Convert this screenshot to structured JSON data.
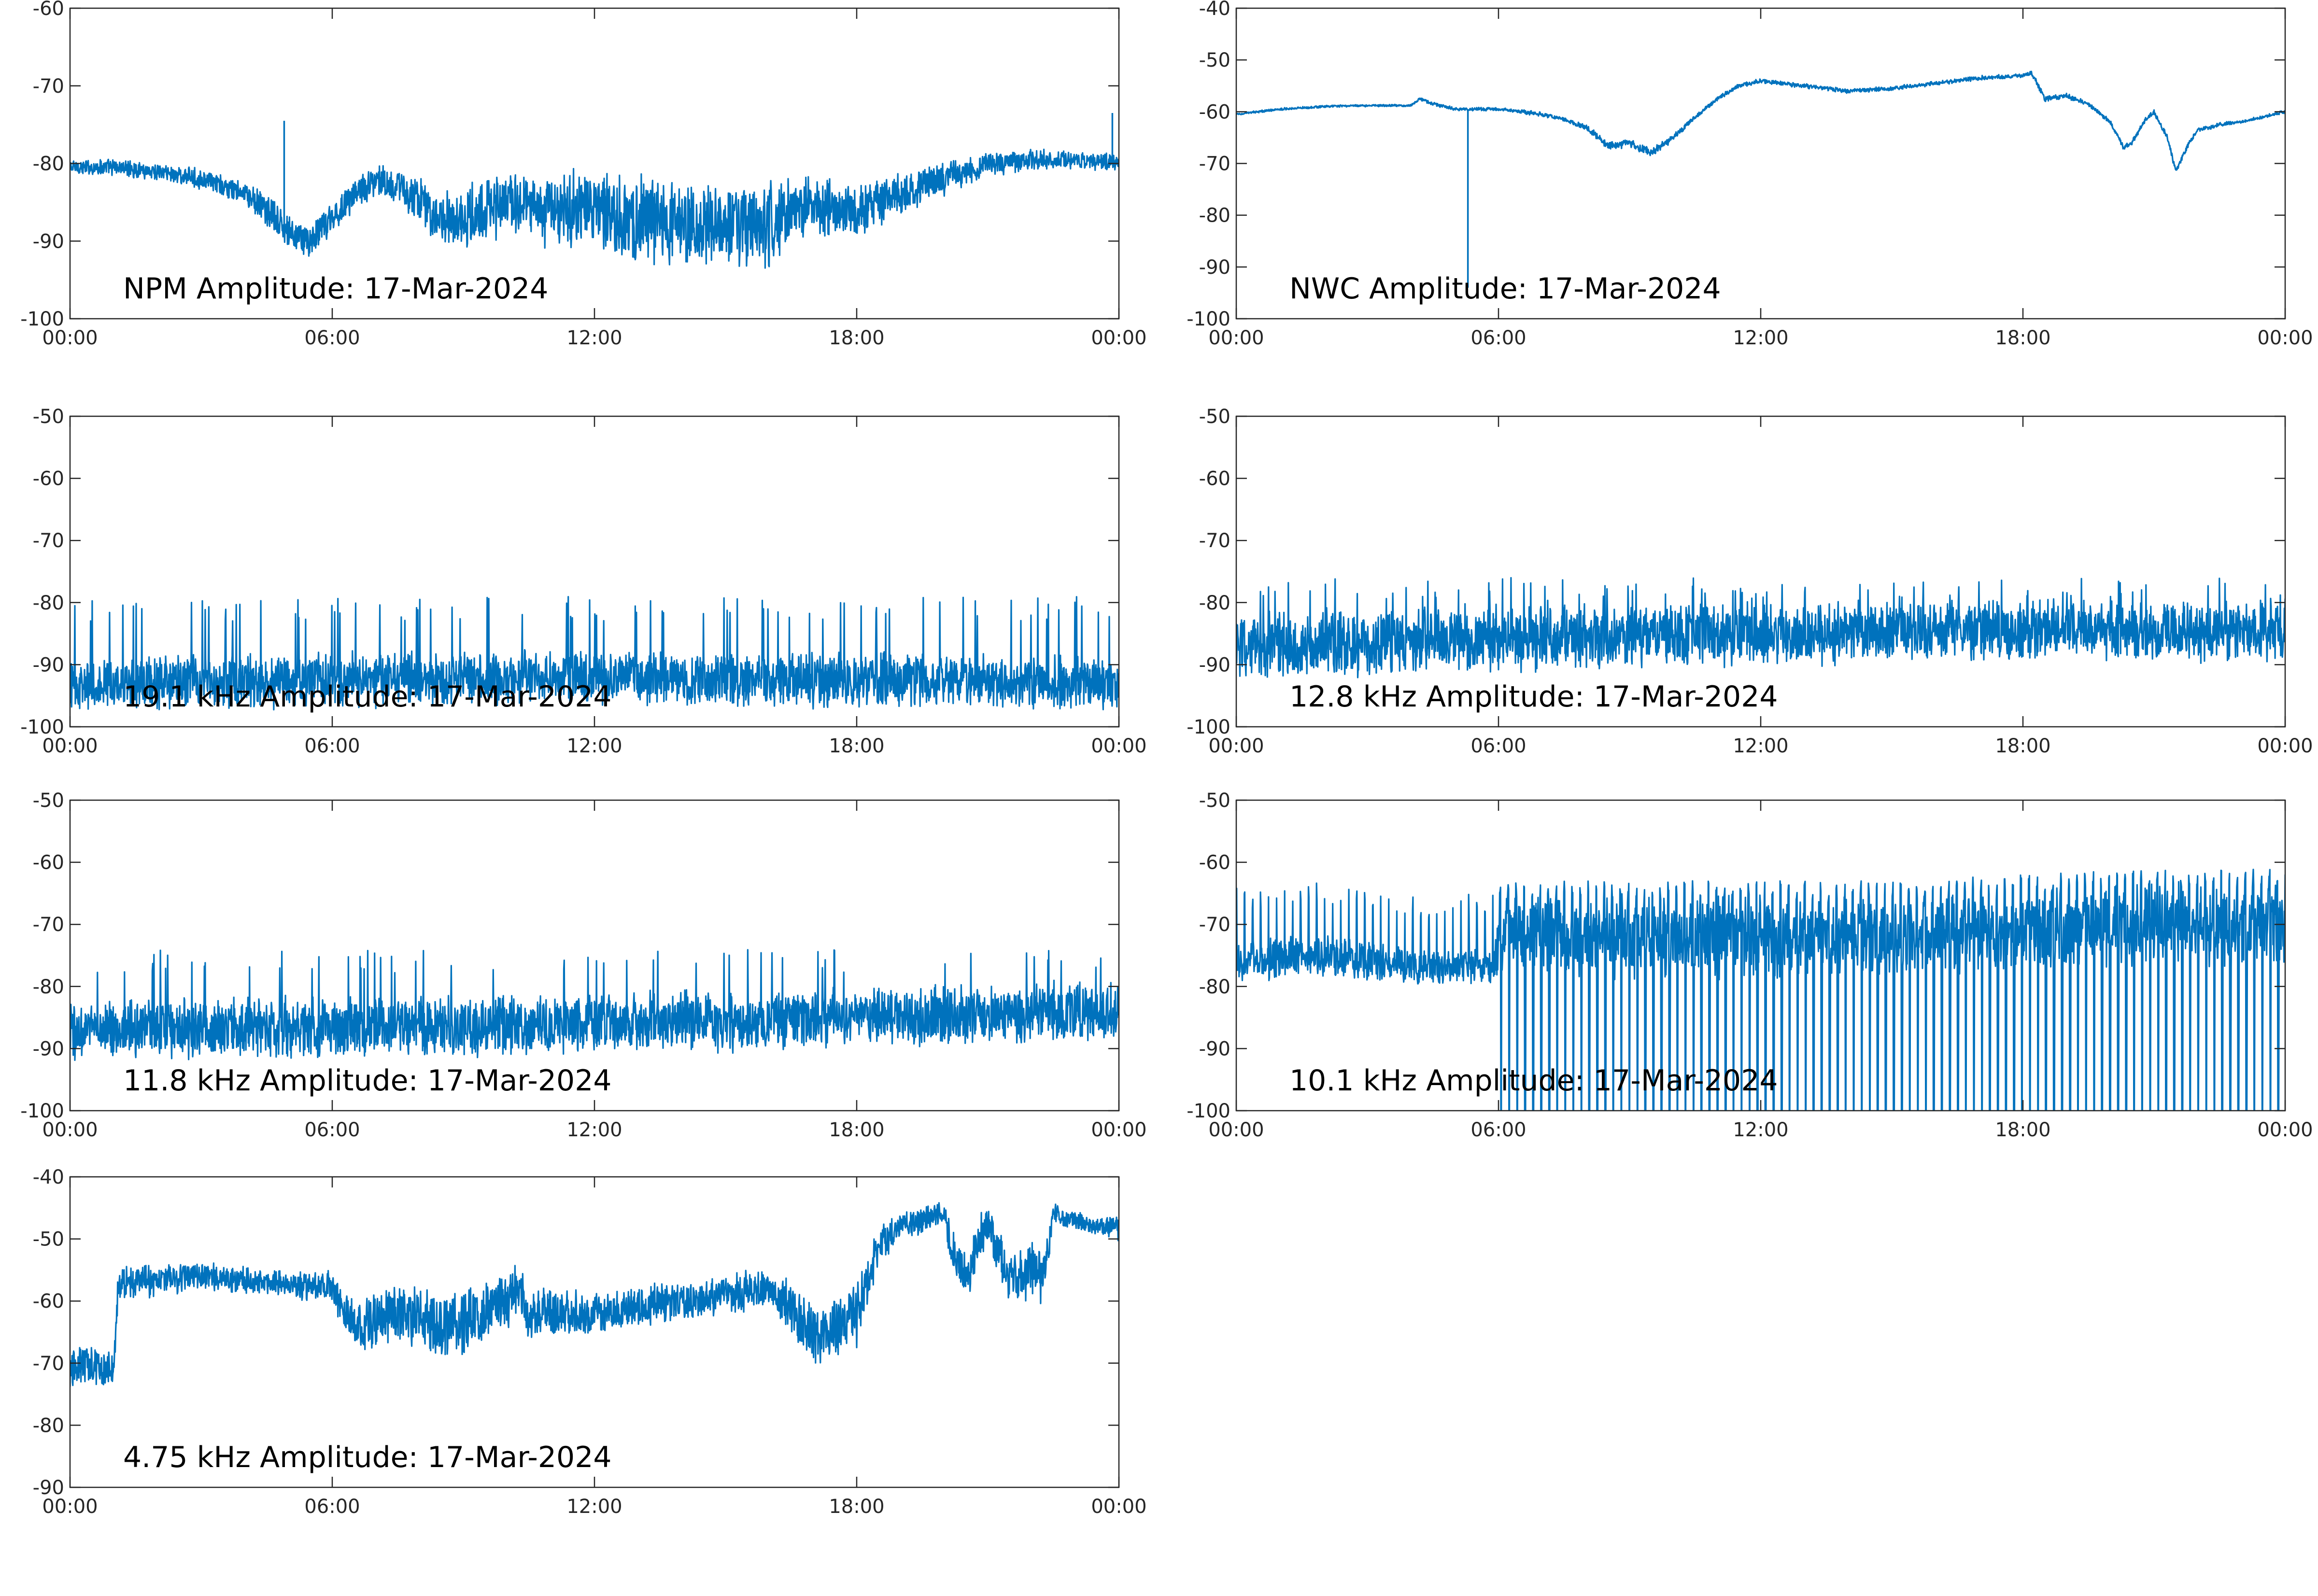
{
  "figure": {
    "background": "#ffffff",
    "line_color": "#0072bd",
    "axis_color": "#262626"
  },
  "chart_data": [
    {
      "type": "line",
      "title": "NPM Amplitude: 17-Mar-2024",
      "xlabel": "",
      "ylabel": "",
      "xticks": [
        "00:00",
        "06:00",
        "12:00",
        "18:00",
        "00:00"
      ],
      "yticks": [
        "-60",
        "-70",
        "-80",
        "-90",
        "-100"
      ],
      "ylim": [
        -100,
        -60
      ],
      "xlim_hours": [
        0,
        24
      ],
      "grid": false,
      "series": [
        {
          "x_hours": [
            0,
            1,
            2,
            3,
            4,
            4.5,
            5,
            5.5,
            6,
            6.5,
            7,
            7.5,
            8,
            8.5,
            9,
            9.5,
            10,
            11,
            12,
            13,
            14,
            15,
            16,
            16.5,
            17,
            17.5,
            18,
            19,
            20,
            21,
            22,
            23,
            24
          ],
          "center": [
            -80.5,
            -80.5,
            -81,
            -82,
            -84,
            -86,
            -89,
            -90,
            -87,
            -84,
            -82,
            -83,
            -85,
            -87,
            -87,
            -86,
            -85,
            -86,
            -86,
            -87,
            -88,
            -88,
            -88,
            -86,
            -85,
            -86,
            -86,
            -84,
            -82,
            -80,
            -79.5,
            -79.5,
            -80
          ],
          "noise": [
            1,
            1,
            1,
            1.2,
            1.5,
            2,
            2,
            2,
            2,
            2,
            1.8,
            2.2,
            3,
            3,
            3.5,
            4,
            4,
            4.5,
            4.5,
            5,
            5,
            5,
            5,
            4,
            3.5,
            3.5,
            3,
            2.5,
            2,
            1.5,
            1.2,
            1,
            1
          ],
          "spikes": [
            {
              "x_hours": 4.9,
              "value": -74.5
            },
            {
              "x_hours": 23.85,
              "value": -73.5
            }
          ]
        }
      ]
    },
    {
      "type": "line",
      "title": "NWC Amplitude: 17-Mar-2024",
      "xlabel": "",
      "ylabel": "",
      "xticks": [
        "00:00",
        "06:00",
        "12:00",
        "18:00",
        "00:00"
      ],
      "yticks": [
        "-40",
        "-50",
        "-60",
        "-70",
        "-80",
        "-90",
        "-100"
      ],
      "ylim": [
        -100,
        -40
      ],
      "xlim_hours": [
        0,
        24
      ],
      "grid": false,
      "series": [
        {
          "x_hours": [
            0,
            1,
            2,
            3,
            4,
            4.2,
            4.5,
            5,
            6,
            7,
            7.5,
            8,
            8.5,
            9,
            9.5,
            10,
            10.5,
            11,
            11.5,
            12,
            13,
            14,
            15,
            15.5,
            16,
            17,
            18,
            18.2,
            18.5,
            19,
            19.5,
            20,
            20.3,
            20.5,
            20.8,
            21,
            21.3,
            21.5,
            21.8,
            22,
            22.5,
            23,
            24
          ],
          "center": [
            -60.5,
            -59.5,
            -59,
            -58.8,
            -58.8,
            -57.5,
            -58.5,
            -59.5,
            -59.5,
            -60.5,
            -61.5,
            -63,
            -66.5,
            -66,
            -68,
            -65,
            -61,
            -57.5,
            -55,
            -54,
            -55,
            -56,
            -55.5,
            -55,
            -54.5,
            -53.5,
            -53,
            -52.5,
            -57.5,
            -57,
            -58.5,
            -62,
            -67,
            -66,
            -61.5,
            -60,
            -65,
            -71.5,
            -66,
            -63.5,
            -62.5,
            -62,
            -60
          ],
          "noise": [
            0.2,
            0.2,
            0.2,
            0.2,
            0.2,
            0.3,
            0.3,
            0.3,
            0.3,
            0.4,
            0.4,
            0.5,
            0.8,
            0.8,
            0.8,
            0.6,
            0.5,
            0.4,
            0.4,
            0.4,
            0.4,
            0.4,
            0.4,
            0.4,
            0.4,
            0.4,
            0.4,
            0.4,
            0.5,
            0.5,
            0.4,
            0.4,
            0.5,
            0.5,
            0.4,
            0.4,
            0.5,
            0.5,
            0.4,
            0.4,
            0.4,
            0.3,
            0.3
          ],
          "spikes": [
            {
              "x_hours": 5.3,
              "value": -94
            }
          ]
        }
      ]
    },
    {
      "type": "line",
      "title": "19.1 kHz Amplitude: 17-Mar-2024",
      "xlabel": "",
      "ylabel": "",
      "xticks": [
        "00:00",
        "06:00",
        "12:00",
        "18:00",
        "00:00"
      ],
      "yticks": [
        "-50",
        "-60",
        "-70",
        "-80",
        "-90",
        "-100"
      ],
      "ylim": [
        -100,
        -50
      ],
      "xlim_hours": [
        0,
        24
      ],
      "grid": false,
      "series": [
        {
          "x_hours": [
            0,
            6,
            12,
            18,
            24
          ],
          "center": [
            -93,
            -92.5,
            -92,
            -92.5,
            -93
          ],
          "noise": [
            4,
            4,
            4,
            4,
            4
          ],
          "spike_height": -81
        }
      ]
    },
    {
      "type": "line",
      "title": "12.8 kHz Amplitude: 17-Mar-2024",
      "xlabel": "",
      "ylabel": "",
      "xticks": [
        "00:00",
        "06:00",
        "12:00",
        "18:00",
        "00:00"
      ],
      "yticks": [
        "-50",
        "-60",
        "-70",
        "-80",
        "-90",
        "-100"
      ],
      "ylim": [
        -100,
        -50
      ],
      "xlim_hours": [
        0,
        24
      ],
      "grid": false,
      "series": [
        {
          "x_hours": [
            0,
            6,
            12,
            18,
            24
          ],
          "center": [
            -87,
            -86,
            -85,
            -84.5,
            -84.5
          ],
          "noise": [
            5,
            5,
            4.5,
            4.5,
            4.5
          ],
          "spike_height": -78
        }
      ]
    },
    {
      "type": "line",
      "title": "11.8 kHz Amplitude: 17-Mar-2024",
      "xlabel": "",
      "ylabel": "",
      "xticks": [
        "00:00",
        "06:00",
        "12:00",
        "18:00",
        "00:00"
      ],
      "yticks": [
        "-50",
        "-60",
        "-70",
        "-80",
        "-90",
        "-100"
      ],
      "ylim": [
        -100,
        -50
      ],
      "xlim_hours": [
        0,
        24
      ],
      "grid": false,
      "series": [
        {
          "x_hours": [
            0,
            6,
            12,
            18,
            24
          ],
          "center": [
            -87,
            -86.5,
            -86,
            -85,
            -84
          ],
          "noise": [
            4.5,
            4.5,
            4.5,
            4.5,
            4.5
          ],
          "spike_height": -76
        }
      ]
    },
    {
      "type": "line",
      "title": "10.1 kHz Amplitude: 17-Mar-2024",
      "xlabel": "",
      "ylabel": "",
      "xticks": [
        "00:00",
        "06:00",
        "12:00",
        "18:00",
        "00:00"
      ],
      "yticks": [
        "-50",
        "-60",
        "-70",
        "-80",
        "-90",
        "-100"
      ],
      "ylim": [
        -100,
        -50
      ],
      "xlim_hours": [
        0,
        24
      ],
      "grid": false,
      "series": [
        {
          "x_hours": [
            0,
            1.5,
            3,
            4.5,
            5.9,
            6,
            9,
            12,
            15,
            18,
            21,
            24
          ],
          "center": [
            -76,
            -75,
            -76,
            -77,
            -77,
            -72,
            -72,
            -72,
            -72,
            -71,
            -70,
            -70
          ],
          "noise": [
            3,
            3,
            3,
            2.5,
            2.5,
            6,
            6,
            6,
            6,
            6,
            6,
            6
          ],
          "dropouts_after_hours": 6
        }
      ]
    },
    {
      "type": "line",
      "title": "4.75 kHz Amplitude: 17-Mar-2024",
      "xlabel": "",
      "ylabel": "",
      "xticks": [
        "00:00",
        "06:00",
        "12:00",
        "18:00",
        "00:00"
      ],
      "yticks": [
        "-40",
        "-50",
        "-60",
        "-70",
        "-80",
        "-90"
      ],
      "ylim": [
        -90,
        -40
      ],
      "xlim_hours": [
        0,
        24
      ],
      "grid": false,
      "series": [
        {
          "x_hours": [
            0,
            0.5,
            1,
            1.1,
            1.5,
            3,
            4.5,
            6,
            6.5,
            7.5,
            8.5,
            9.5,
            10.3,
            10.5,
            11,
            12,
            13,
            14,
            15,
            16,
            16.5,
            17,
            17.5,
            18,
            18.5,
            19,
            19.5,
            20,
            20.3,
            20.5,
            21,
            21.5,
            22,
            22.3,
            22.5,
            23,
            23.5,
            24
          ],
          "center": [
            -71,
            -70,
            -71,
            -57,
            -57,
            -56,
            -57,
            -58,
            -64,
            -62,
            -64,
            -62,
            -58,
            -63,
            -62,
            -62,
            -61,
            -60,
            -59,
            -58,
            -61,
            -66,
            -64,
            -62,
            -51,
            -48,
            -47,
            -46,
            -55,
            -56,
            -47,
            -57,
            -55,
            -56,
            -46,
            -47,
            -48,
            -48
          ],
          "noise": [
            3,
            3,
            3,
            2.5,
            2.5,
            2,
            2,
            2.5,
            4,
            5,
            5,
            5,
            4,
            4,
            4,
            3,
            3,
            3,
            3,
            3,
            4,
            5,
            5,
            5,
            3,
            2,
            2,
            2,
            4,
            4,
            3,
            4,
            4,
            4,
            1.5,
            1.5,
            1.5,
            2
          ]
        }
      ]
    }
  ]
}
